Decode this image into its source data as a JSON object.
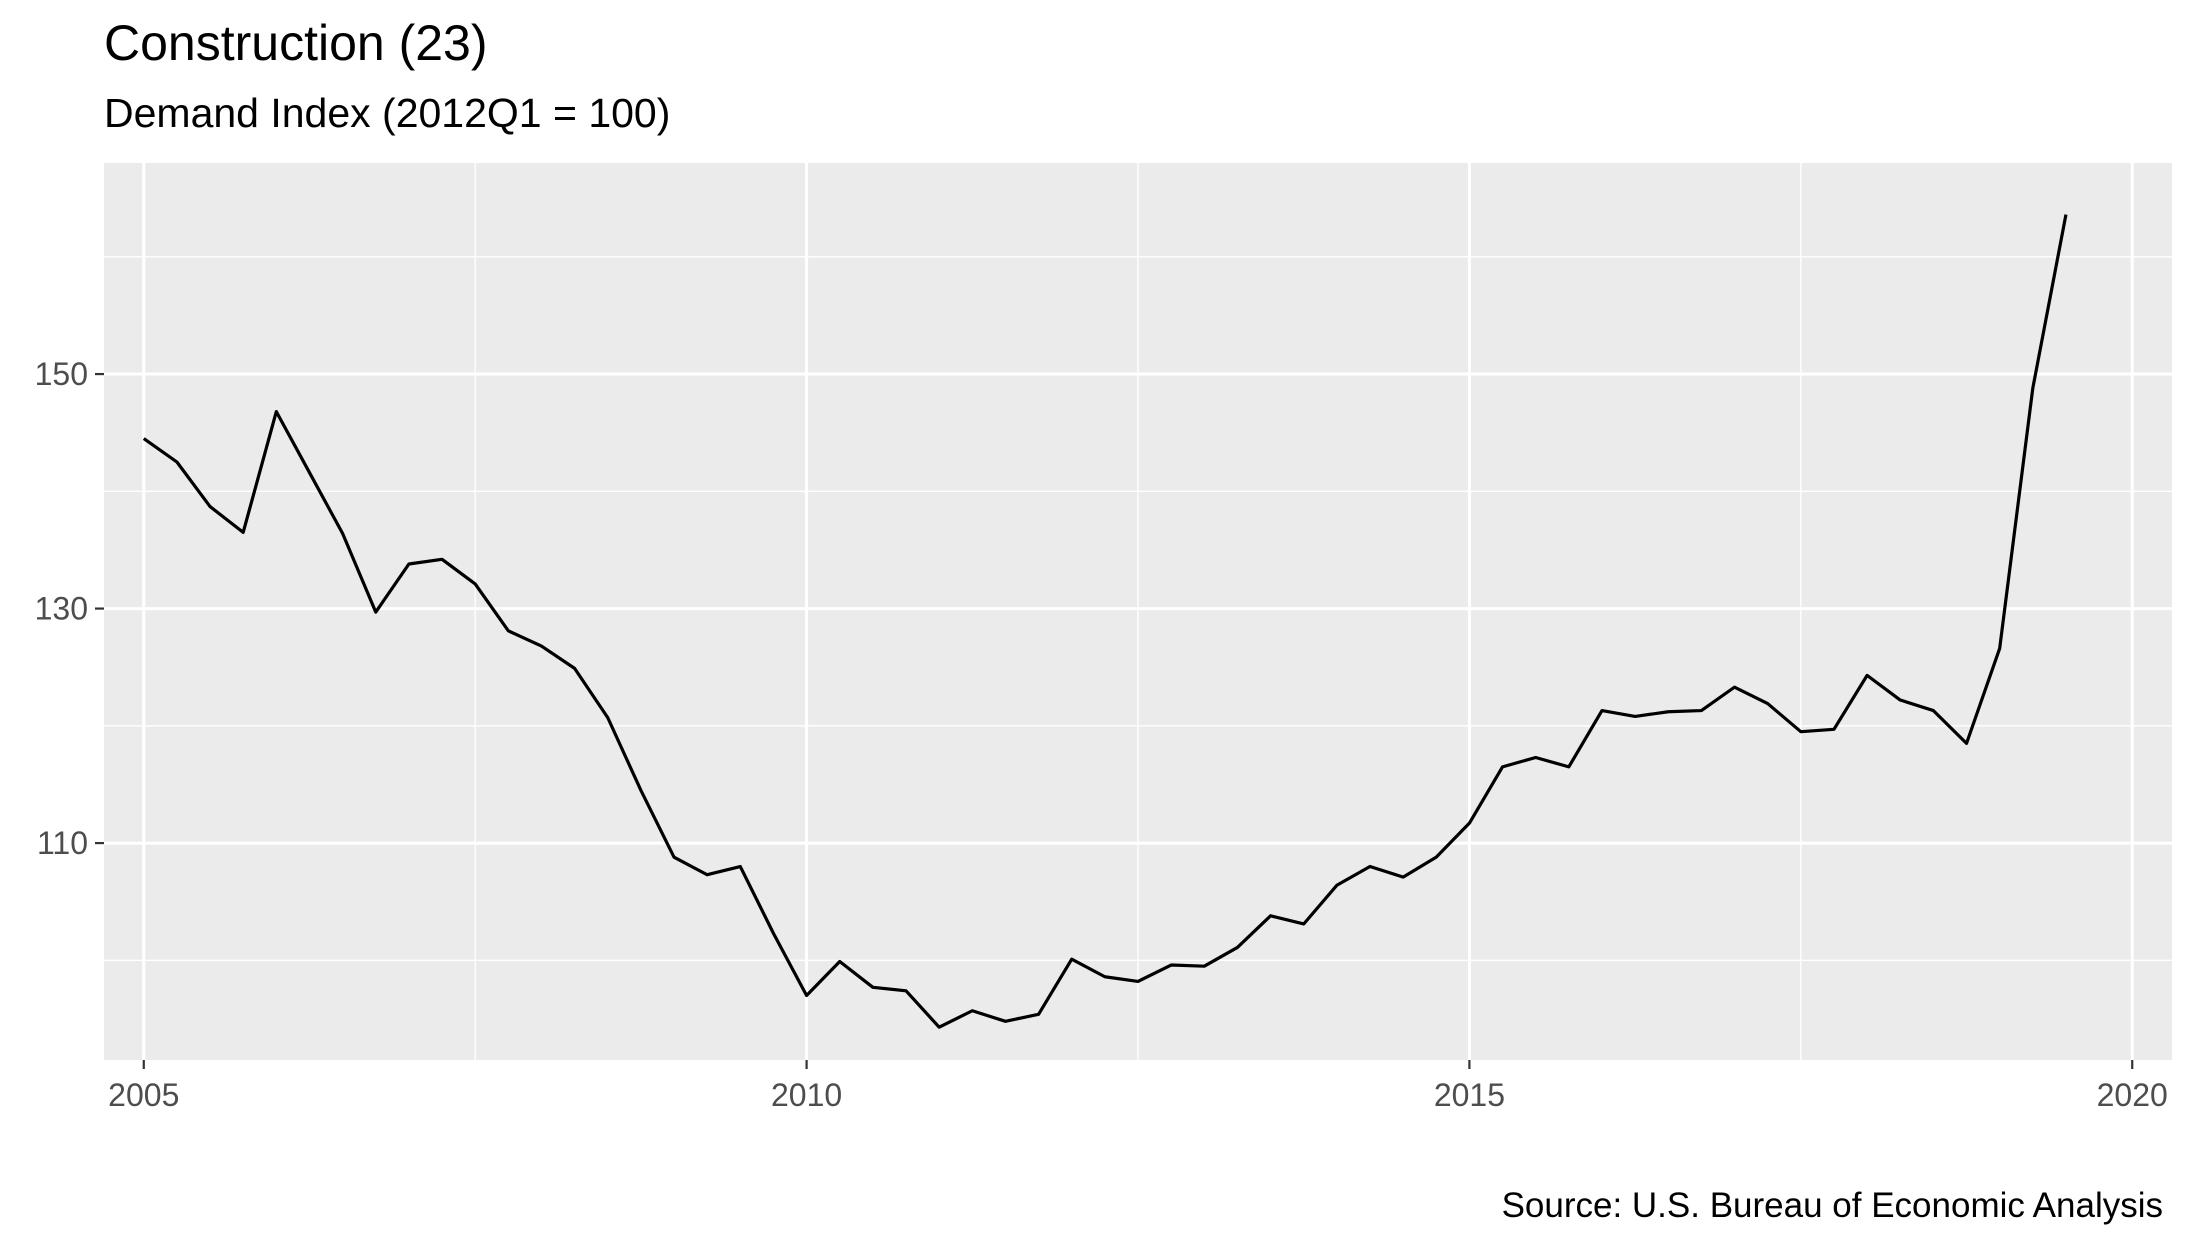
{
  "chart_data": {
    "type": "line",
    "title": "Construction (23)",
    "subtitle": "Demand Index (2012Q1 = 100)",
    "caption": "Source: U.S. Bureau of Economic Analysis",
    "xlabel": "",
    "ylabel": "",
    "xlim": [
      2004.7,
      2020.3
    ],
    "ylim": [
      91.5,
      168
    ],
    "x_ticks": [
      2005,
      2010,
      2015,
      2020
    ],
    "y_ticks": [
      110,
      130,
      150
    ],
    "grid": true,
    "series": [
      {
        "color": "#000000",
        "x": [
          2005.0,
          2005.25,
          2005.5,
          2005.75,
          2006.0,
          2006.25,
          2006.5,
          2006.75,
          2007.0,
          2007.25,
          2007.5,
          2007.75,
          2008.0,
          2008.25,
          2008.5,
          2008.75,
          2009.0,
          2009.25,
          2009.5,
          2009.75,
          2010.0,
          2010.25,
          2010.5,
          2010.75,
          2011.0,
          2011.25,
          2011.5,
          2011.75,
          2012.0,
          2012.25,
          2012.5,
          2012.75,
          2013.0,
          2013.25,
          2013.5,
          2013.75,
          2014.0,
          2014.25,
          2014.5,
          2014.75,
          2015.0,
          2015.25,
          2015.5,
          2015.75,
          2016.0,
          2016.25,
          2016.5,
          2016.75,
          2017.0,
          2017.25,
          2017.5,
          2017.75,
          2018.0,
          2018.25,
          2018.5,
          2018.75,
          2019.0,
          2019.25,
          2019.5
        ],
        "values": [
          144.5,
          142.5,
          138.7,
          136.5,
          146.8,
          141.6,
          136.4,
          129.7,
          133.8,
          134.2,
          132.1,
          128.1,
          126.8,
          124.9,
          120.7,
          114.5,
          108.8,
          107.3,
          108.0,
          102.3,
          97.0,
          99.9,
          97.7,
          97.4,
          94.3,
          95.7,
          94.8,
          95.4,
          100.1,
          98.6,
          98.2,
          99.6,
          99.5,
          101.1,
          103.8,
          103.1,
          106.4,
          108.0,
          107.1,
          108.8,
          111.7,
          116.5,
          117.3,
          116.5,
          121.3,
          120.8,
          121.2,
          121.3,
          123.3,
          121.9,
          119.5,
          119.7,
          124.3,
          122.2,
          121.3,
          118.5,
          126.6,
          148.8,
          163.6
        ]
      }
    ]
  }
}
